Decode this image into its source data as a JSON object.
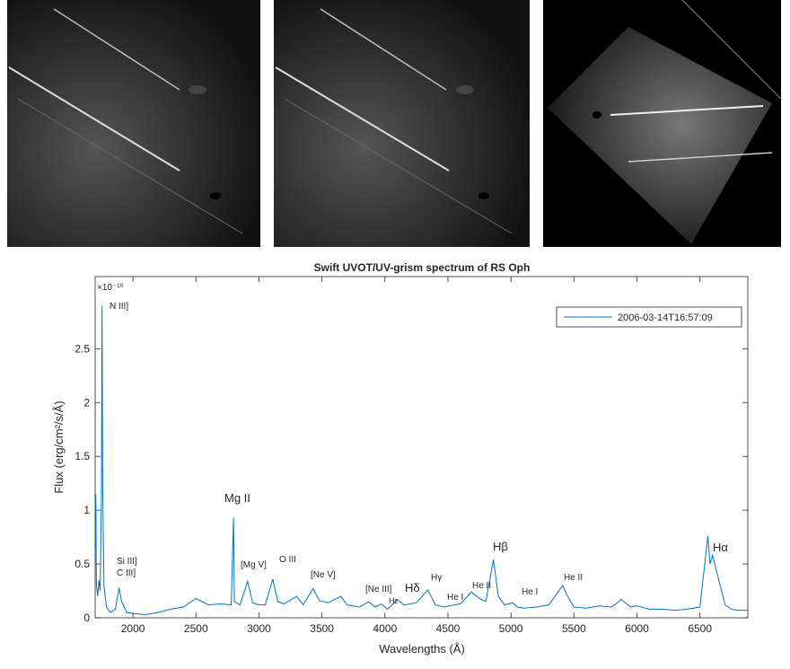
{
  "chart_data": {
    "type": "line",
    "title": "Swift UVOT/UV-grism spectrum of RS Oph",
    "x_label": "Wavelengths (Å)",
    "y_label": "Flux (erg/cm²/s/Å)",
    "y_multiplier": "×10⁻¹⁰",
    "x": [
      1700,
      1705,
      1710,
      1720,
      1730,
      1740,
      1750,
      1755,
      1760,
      1770,
      1790,
      1820,
      1860,
      1890,
      1910,
      1950,
      2000,
      2100,
      2200,
      2300,
      2400,
      2500,
      2600,
      2700,
      2780,
      2798,
      2805,
      2850,
      2910,
      2950,
      3000,
      3050,
      3110,
      3150,
      3200,
      3300,
      3350,
      3430,
      3480,
      3550,
      3650,
      3700,
      3800,
      3870,
      3920,
      3970,
      4020,
      4100,
      4150,
      4250,
      4340,
      4400,
      4470,
      4550,
      4600,
      4686,
      4750,
      4800,
      4861,
      4900,
      4950,
      5015,
      5050,
      5100,
      5200,
      5300,
      5411,
      5450,
      5500,
      5600,
      5700,
      5800,
      5876,
      5950,
      6000,
      6100,
      6200,
      6300,
      6400,
      6500,
      6563,
      6580,
      6600,
      6650,
      6700,
      6750,
      6800,
      6880
    ],
    "series": [
      {
        "name": "2006-03-14T16:57:09",
        "color": "#0072bd",
        "values": [
          0.6,
          1.15,
          0.3,
          0.2,
          0.35,
          0.25,
          1.2,
          2.9,
          1.2,
          0.3,
          0.1,
          0.05,
          0.08,
          0.28,
          0.15,
          0.05,
          0.04,
          0.03,
          0.05,
          0.08,
          0.1,
          0.18,
          0.12,
          0.13,
          0.12,
          0.93,
          0.15,
          0.12,
          0.34,
          0.14,
          0.12,
          0.12,
          0.36,
          0.15,
          0.13,
          0.2,
          0.12,
          0.27,
          0.16,
          0.14,
          0.2,
          0.12,
          0.1,
          0.15,
          0.1,
          0.13,
          0.08,
          0.17,
          0.12,
          0.14,
          0.26,
          0.12,
          0.1,
          0.12,
          0.13,
          0.24,
          0.18,
          0.15,
          0.54,
          0.2,
          0.12,
          0.14,
          0.1,
          0.09,
          0.1,
          0.12,
          0.3,
          0.2,
          0.1,
          0.09,
          0.11,
          0.1,
          0.17,
          0.1,
          0.11,
          0.08,
          0.08,
          0.07,
          0.08,
          0.1,
          0.76,
          0.5,
          0.58,
          0.35,
          0.12,
          0.08,
          0.07,
          0.07
        ]
      }
    ],
    "xlim": [
      1700,
      6880
    ],
    "ylim": [
      0,
      3.17
    ],
    "xticks": [
      2000,
      2500,
      3000,
      3500,
      4000,
      4500,
      5000,
      5500,
      6000,
      6500
    ],
    "yticks": [
      0,
      0.5,
      1,
      1.5,
      2,
      2.5
    ],
    "legend": "upper right",
    "annotations": [
      "N III]",
      "Si III]",
      "C III]",
      "Mg II",
      "[Mg V]",
      "O III",
      "[Ne V]",
      "[Ne III]",
      "Hε",
      "Hδ",
      "Hγ",
      "He I",
      "He II",
      "Hβ",
      "He I",
      "He II",
      "Hα"
    ]
  }
}
